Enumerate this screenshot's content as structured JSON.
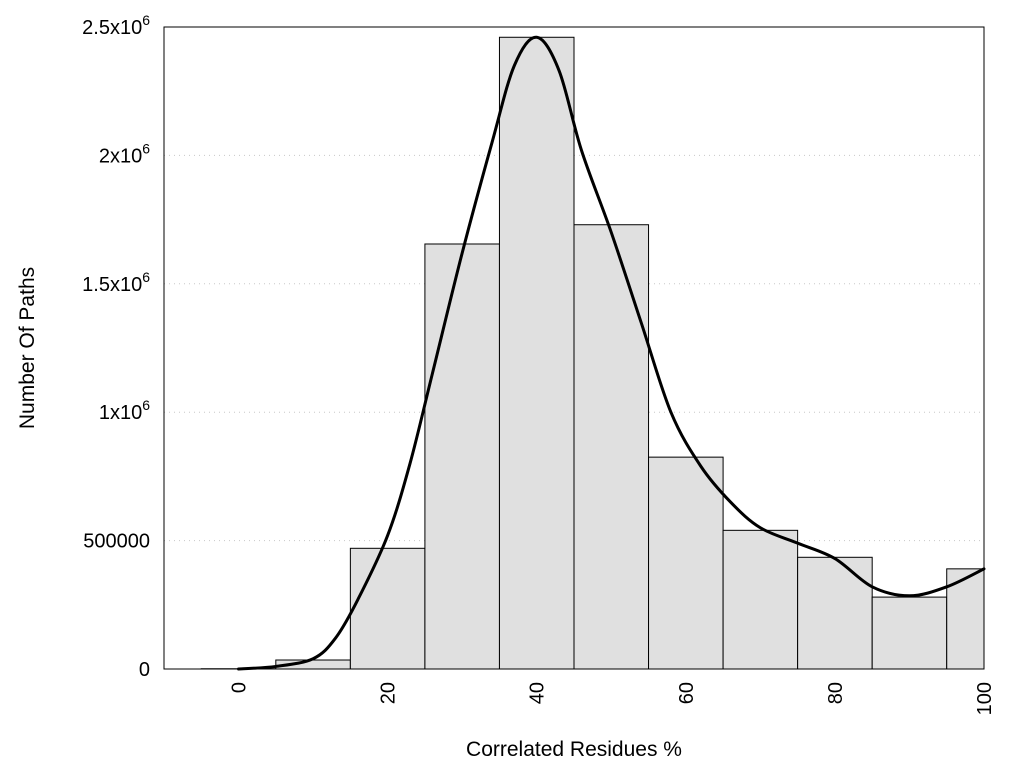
{
  "chart_data": {
    "type": "bar",
    "title": "",
    "xlabel": "Correlated Residues %",
    "ylabel": "Number Of Paths",
    "xlim": [
      -10,
      100
    ],
    "ylim": [
      0,
      2500000
    ],
    "bin_width": 10,
    "x_ticks": [
      {
        "value": 0,
        "label": "0"
      },
      {
        "value": 20,
        "label": "20"
      },
      {
        "value": 40,
        "label": "40"
      },
      {
        "value": 60,
        "label": "60"
      },
      {
        "value": 80,
        "label": "80"
      },
      {
        "value": 100,
        "label": "100"
      }
    ],
    "y_ticks": [
      {
        "value": 0,
        "label": "0",
        "base": "",
        "exp": ""
      },
      {
        "value": 500000,
        "label": "500000",
        "base": "",
        "exp": ""
      },
      {
        "value": 1000000,
        "label": "",
        "base": "1x10",
        "exp": "6"
      },
      {
        "value": 1500000,
        "label": "",
        "base": "1.5x10",
        "exp": "6"
      },
      {
        "value": 2000000,
        "label": "",
        "base": "2x10",
        "exp": "6"
      },
      {
        "value": 2500000,
        "label": "",
        "base": "2.5x10",
        "exp": "6"
      }
    ],
    "bins": [
      {
        "center": 0,
        "value": 1000
      },
      {
        "center": 10,
        "value": 35000
      },
      {
        "center": 20,
        "value": 470000
      },
      {
        "center": 30,
        "value": 1655000
      },
      {
        "center": 40,
        "value": 2460000
      },
      {
        "center": 50,
        "value": 1730000
      },
      {
        "center": 60,
        "value": 825000
      },
      {
        "center": 70,
        "value": 540000
      },
      {
        "center": 80,
        "value": 435000
      },
      {
        "center": 90,
        "value": 280000
      },
      {
        "center": 100,
        "value": 390000
      }
    ],
    "curve": {
      "x": [
        0,
        5,
        10,
        13,
        16,
        20,
        23,
        26,
        30,
        34,
        37,
        40,
        43,
        46,
        50,
        54,
        58,
        62,
        66,
        70,
        75,
        80,
        85,
        90,
        95,
        100
      ],
      "y": [
        0,
        10000,
        40000,
        120000,
        270000,
        520000,
        800000,
        1150000,
        1620000,
        2050000,
        2350000,
        2460000,
        2330000,
        2020000,
        1700000,
        1350000,
        1000000,
        790000,
        650000,
        550000,
        490000,
        430000,
        320000,
        285000,
        320000,
        390000
      ]
    },
    "grid": "horizontal-dotted",
    "legend": "none"
  }
}
